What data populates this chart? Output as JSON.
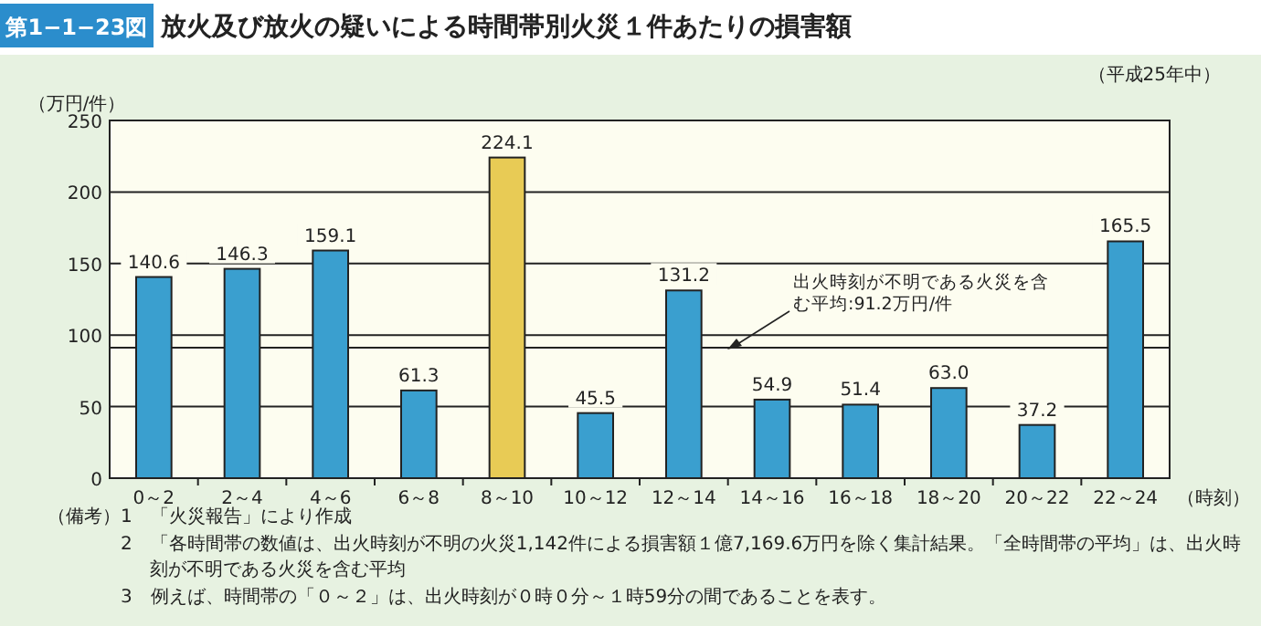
{
  "chart_data": {
    "type": "bar",
    "title": "放火及び放火の疑いによる時間帯別火災１件あたりの損害額",
    "subtitle": "（平成25年中）",
    "ylabel": "（万円/件）",
    "xlabel": "（時刻）",
    "categories": [
      "0～2",
      "2～4",
      "4～6",
      "6～8",
      "8～10",
      "10～12",
      "12～14",
      "14～16",
      "16～18",
      "18～20",
      "20～22",
      "22～24"
    ],
    "values": [
      140.6,
      146.3,
      159.1,
      61.3,
      224.1,
      45.5,
      131.2,
      54.9,
      51.4,
      63.0,
      37.2,
      165.5
    ],
    "colors": [
      "#3a9fcf",
      "#3a9fcf",
      "#3a9fcf",
      "#3a9fcf",
      "#e8cb55",
      "#3a9fcf",
      "#3a9fcf",
      "#3a9fcf",
      "#3a9fcf",
      "#3a9fcf",
      "#3a9fcf",
      "#3a9fcf"
    ],
    "value_labels": [
      "140.6",
      "146.3",
      "159.1",
      "61.3",
      "224.1",
      "45.5",
      "131.2",
      "54.9",
      "51.4",
      "63.0",
      "37.2",
      "165.5"
    ],
    "ylim": [
      0,
      250
    ],
    "yticks": [
      0,
      50,
      100,
      150,
      200,
      250
    ],
    "grid": "y",
    "ref_lines": [
      {
        "axis": "y",
        "value": 91.2,
        "label": "出火時刻が不明である火災を含む平均:91.2万円/件",
        "color": "#222222"
      }
    ],
    "annotations": [
      "第1−1−23図",
      "（備考）",
      "1　「火災報告」により作成",
      "2　「各時間帯の数値は、出火時刻が不明の火災1,142件による損害額１億7,169.6万円を除く集計結果。「全時間帯の平均」は、出火時刻が不明である火災を含む平均",
      "3　例えば、時間帯の「０～２」は、出火時刻が０時０分～１時59分の間であることを表す。"
    ]
  }
}
